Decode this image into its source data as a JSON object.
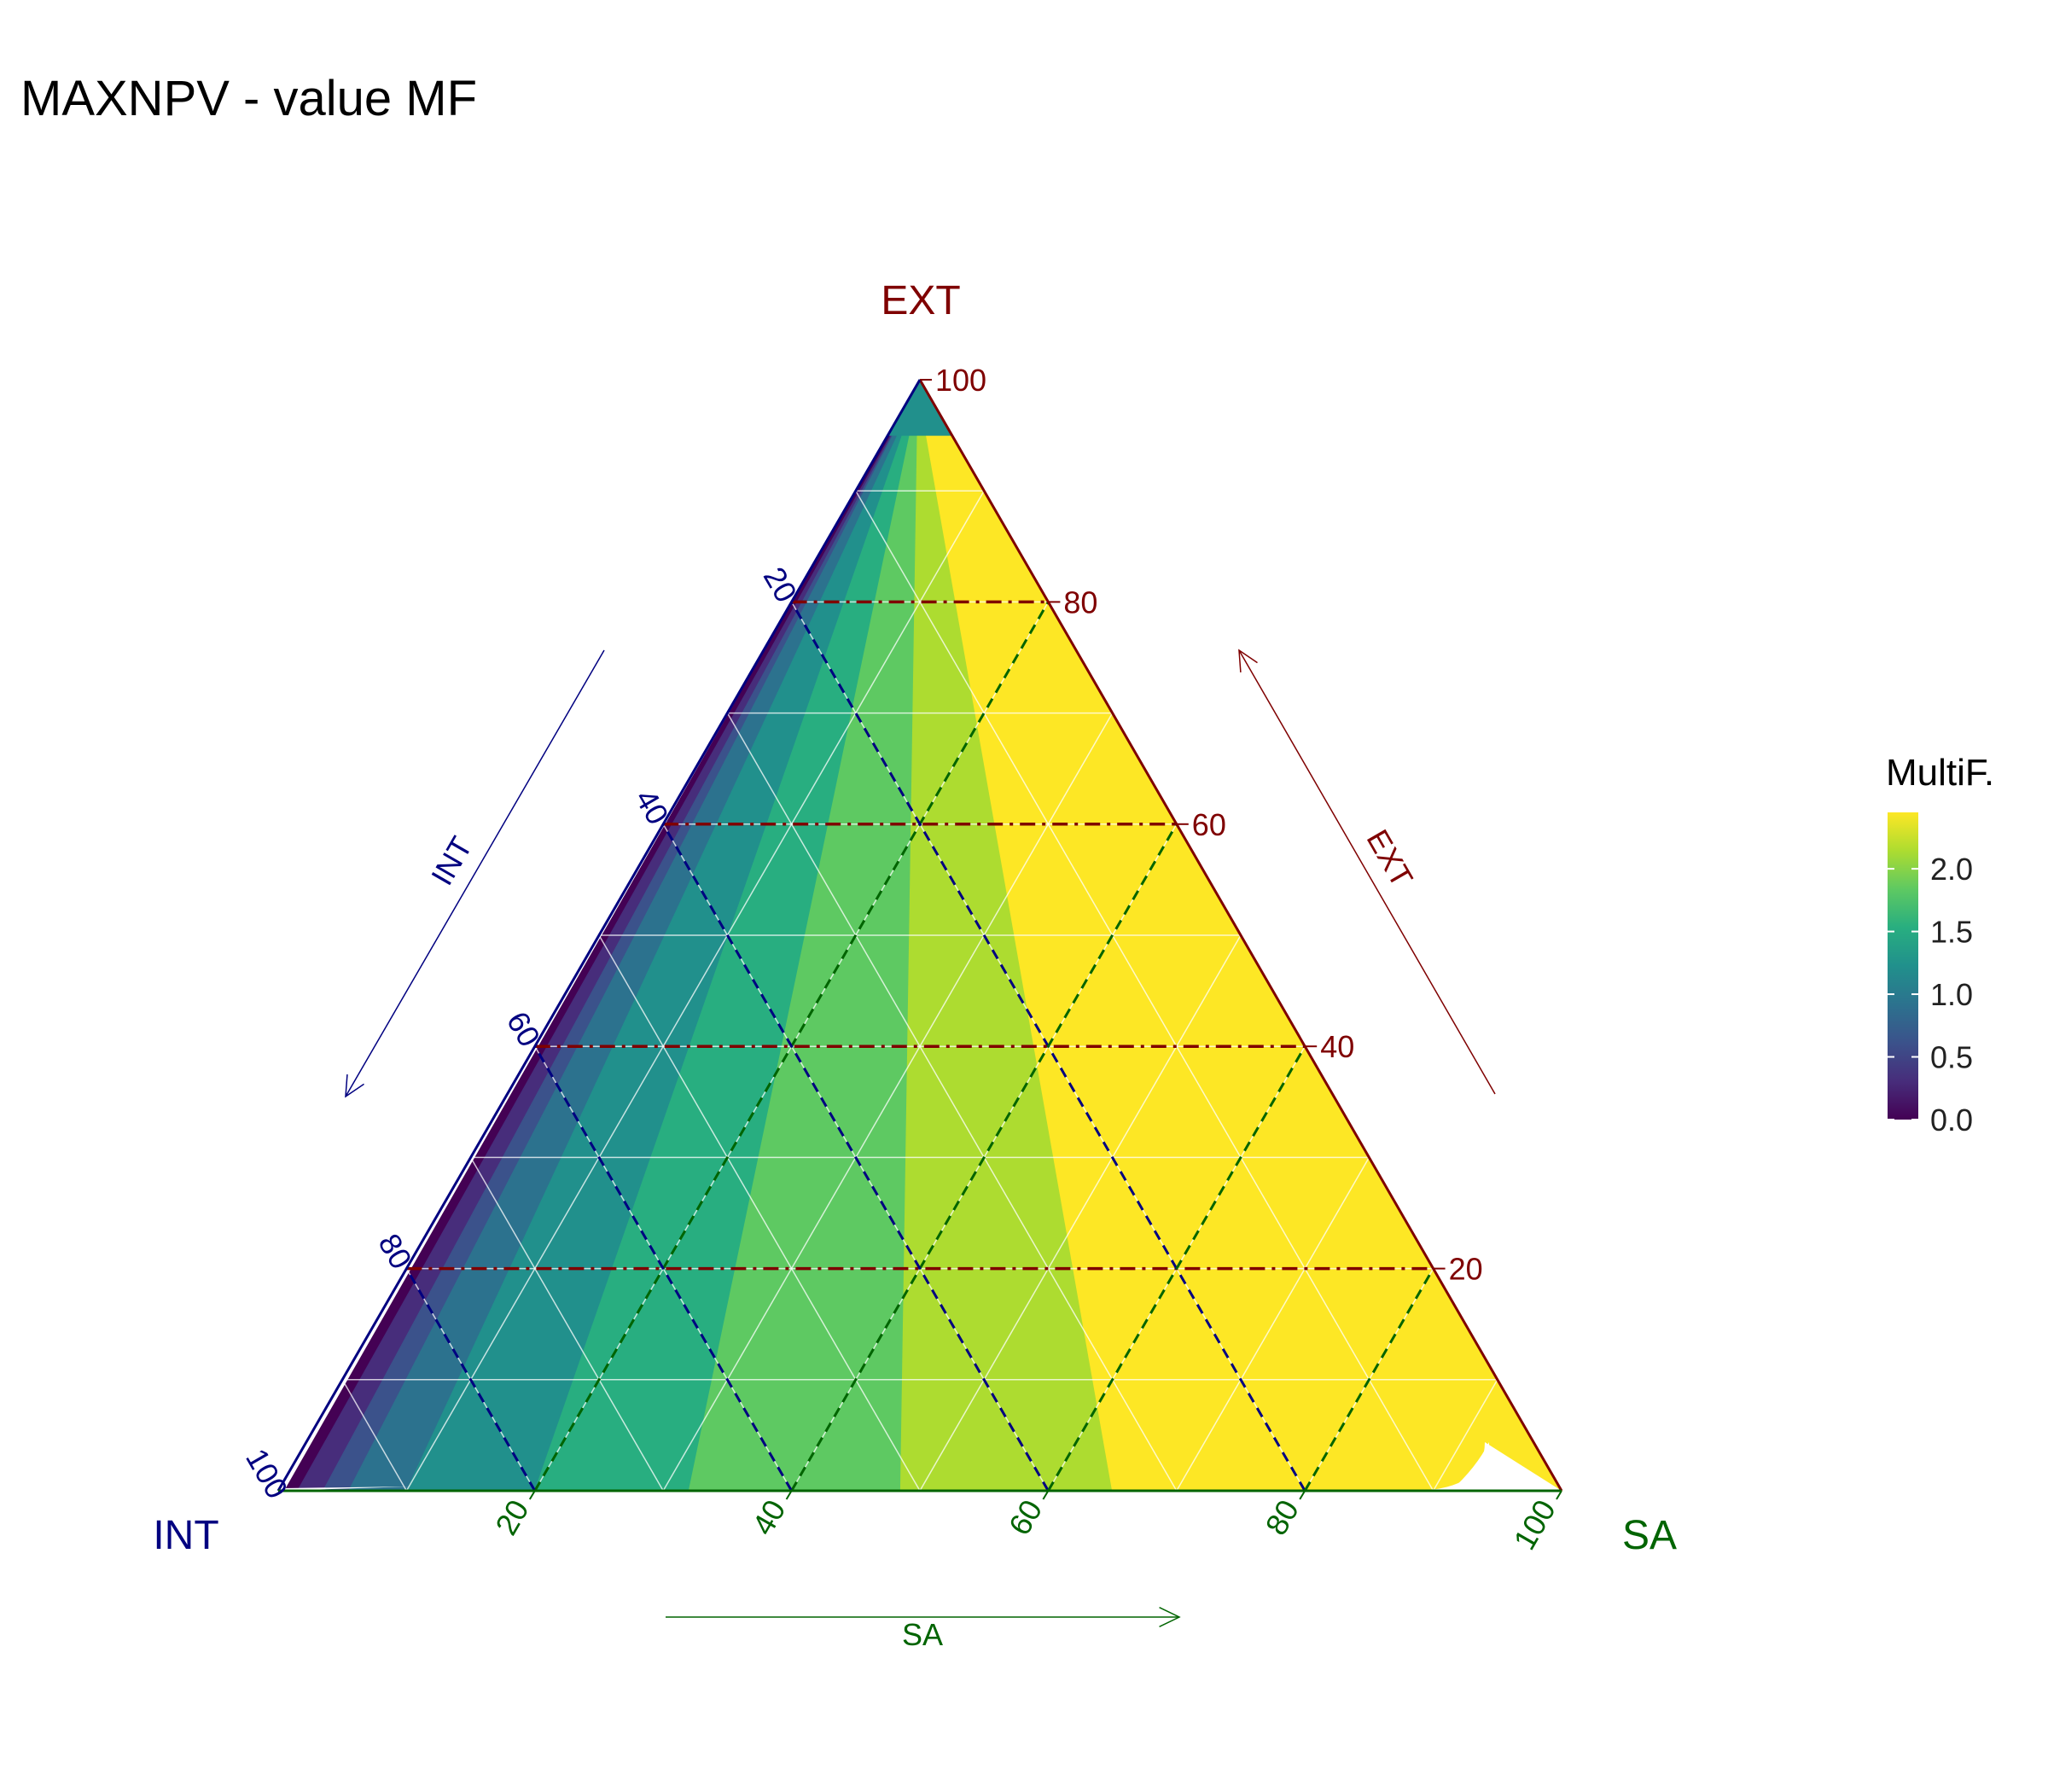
{
  "title": "MAXNPV - value MF",
  "colors": {
    "ext": "#7f0000",
    "int": "#000080",
    "sa": "#006400",
    "palette": [
      "#440154",
      "#472d7b",
      "#3b528b",
      "#2c728e",
      "#21908c",
      "#28ae80",
      "#5ec962",
      "#addc30",
      "#fde725"
    ]
  },
  "chart_data": {
    "type": "ternary",
    "axes": {
      "top": {
        "name": "EXT",
        "arrow_label": "EXT",
        "ticks": [
          "100",
          "80",
          "60",
          "40",
          "20"
        ]
      },
      "left": {
        "name": "INT",
        "arrow_label": "INT",
        "ticks": [
          "20",
          "40",
          "60",
          "80",
          "100"
        ]
      },
      "right": {
        "name": "SA",
        "arrow_label": "SA",
        "ticks": [
          "20",
          "40",
          "60",
          "80",
          "100"
        ]
      }
    },
    "tick_values": [
      20,
      40,
      60,
      80,
      100
    ],
    "fill_variable": "MultiF.",
    "legend": {
      "title": "MultiF.",
      "labels": [
        "2.0",
        "1.5",
        "1.0",
        "0.5",
        "0.0"
      ],
      "values": [
        2.0,
        1.5,
        1.0,
        0.5,
        0.0
      ],
      "min": 0.0,
      "max": 2.45,
      "position": "right"
    },
    "contour_bands": [
      {
        "level": 0.25,
        "top": [
          0.2,
          4.5
        ],
        "bottom": [
          0.5,
          1.5
        ]
      },
      {
        "level": 0.5,
        "top": [
          4.5,
          6.5
        ],
        "bottom": [
          1.5,
          3.5
        ]
      },
      {
        "level": 0.75,
        "top": [
          6.5,
          8.0
        ],
        "bottom": [
          3.5,
          5.5
        ]
      },
      {
        "level": 1.0,
        "top": [
          8.0,
          15.0
        ],
        "bottom": [
          5.5,
          10.0
        ]
      },
      {
        "level": 1.25,
        "top": [
          15.0,
          22.5
        ],
        "bottom": [
          10.0,
          20.0
        ]
      },
      {
        "level": 1.5,
        "top": [
          22.5,
          34.0
        ],
        "bottom": [
          20.0,
          32.0
        ]
      },
      {
        "level": 1.75,
        "top": [
          34.0,
          46.0
        ],
        "bottom": [
          32.0,
          48.5
        ]
      },
      {
        "level": 2.0,
        "top": [
          46.0,
          60.0
        ],
        "bottom": [
          48.5,
          65.0
        ]
      },
      {
        "level": 2.25,
        "top": [
          60.0,
          100.0
        ],
        "bottom": [
          65.0,
          100.0
        ]
      }
    ],
    "grid": true,
    "dashed_reference_lines": [
      20,
      40,
      60,
      80
    ]
  }
}
